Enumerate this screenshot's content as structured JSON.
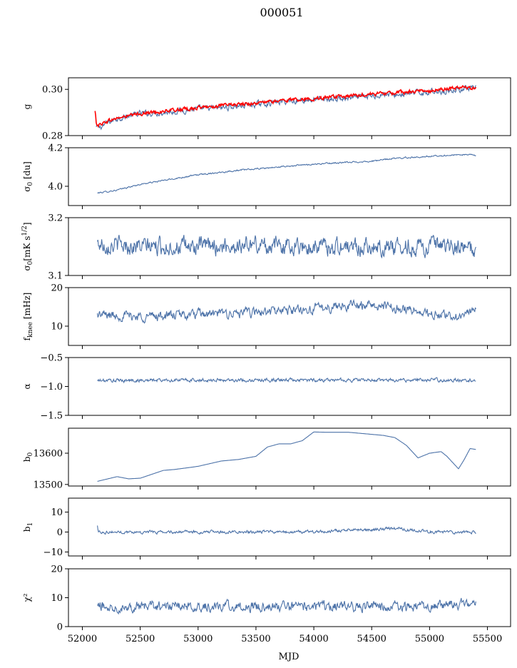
{
  "title": "000051",
  "xlabel": "MJD",
  "x_ticks": [
    "52000",
    "52500",
    "53000",
    "53500",
    "54000",
    "54500",
    "55000",
    "55500"
  ],
  "colors": {
    "series": "#4c72a8",
    "overlay": "#ff0000"
  },
  "chart_data": [
    {
      "type": "line",
      "ylabel": "g",
      "xlim": [
        51880,
        55700
      ],
      "ylim": [
        0.28,
        0.305
      ],
      "y_ticks": [
        "0.28",
        "0.30"
      ],
      "series": [
        {
          "color": "#4c72a8",
          "noise": 0.001,
          "x": [
            52120,
            52150,
            52200,
            52300,
            52500,
            52700,
            53000,
            53200,
            53500,
            53800,
            54000,
            54300,
            54500,
            54600,
            54700,
            55000,
            55200,
            55300,
            55350,
            55400
          ],
          "y": [
            0.2835,
            0.2835,
            0.285,
            0.2875,
            0.2895,
            0.29,
            0.2915,
            0.292,
            0.2935,
            0.295,
            0.2955,
            0.296,
            0.297,
            0.298,
            0.2975,
            0.299,
            0.2995,
            0.3005,
            0.3,
            0.3005
          ]
        },
        {
          "color": "#ff0000",
          "noise": 0.0006,
          "x": [
            52110,
            52120,
            52140,
            52200,
            52300,
            52500,
            52700,
            53000,
            53200,
            53500,
            53800,
            54000,
            54300,
            54500,
            54700,
            55000,
            55200,
            55300,
            55400
          ],
          "y": [
            0.2905,
            0.2855,
            0.2845,
            0.286,
            0.2875,
            0.2895,
            0.2905,
            0.292,
            0.293,
            0.294,
            0.2955,
            0.296,
            0.297,
            0.298,
            0.2985,
            0.2995,
            0.3005,
            0.301,
            0.3005
          ]
        }
      ]
    },
    {
      "type": "line",
      "ylabel": "σ0 [du]",
      "xlim": [
        51880,
        55700
      ],
      "ylim": [
        3.9,
        4.2
      ],
      "y_ticks": [
        "4.0",
        "4.2"
      ],
      "series": [
        {
          "color": "#4c72a8",
          "noise": 0.003,
          "x": [
            52130,
            52300,
            52500,
            52800,
            53000,
            53300,
            53600,
            54000,
            54500,
            54700,
            55000,
            55300,
            55400
          ],
          "y": [
            3.965,
            3.98,
            4.01,
            4.04,
            4.06,
            4.08,
            4.095,
            4.115,
            4.13,
            4.145,
            4.155,
            4.165,
            4.16
          ]
        }
      ]
    },
    {
      "type": "line",
      "ylabel": "σ0[mK s^1/2]",
      "xlim": [
        51880,
        55700
      ],
      "ylim": [
        3.1,
        3.2
      ],
      "y_ticks": [
        "3.1",
        "3.2"
      ],
      "series": [
        {
          "color": "#4c72a8",
          "noise": 0.012,
          "x": [
            52130,
            52500,
            53000,
            53500,
            54000,
            54500,
            55000,
            55400
          ],
          "y": [
            3.155,
            3.15,
            3.15,
            3.153,
            3.15,
            3.15,
            3.15,
            3.145
          ]
        }
      ]
    },
    {
      "type": "line",
      "ylabel": "f_knee [mHz]",
      "xlim": [
        51880,
        55700
      ],
      "ylim": [
        5,
        20
      ],
      "y_ticks": [
        "10",
        "20"
      ],
      "series": [
        {
          "color": "#4c72a8",
          "noise": 1.0,
          "x": [
            52130,
            52500,
            53000,
            53500,
            54000,
            54300,
            54500,
            54800,
            55000,
            55200,
            55400
          ],
          "y": [
            13,
            12.5,
            13,
            13.5,
            14.5,
            15.5,
            15.5,
            14.5,
            13,
            12.5,
            14
          ]
        }
      ]
    },
    {
      "type": "line",
      "ylabel": "α",
      "xlim": [
        51880,
        55700
      ],
      "ylim": [
        -1.5,
        -0.5
      ],
      "y_ticks": [
        "−1.5",
        "−1.0",
        "−0.5"
      ],
      "series": [
        {
          "color": "#4c72a8",
          "noise": 0.025,
          "x": [
            52130,
            52800,
            53500,
            54200,
            54900,
            55400
          ],
          "y": [
            -0.9,
            -0.89,
            -0.89,
            -0.89,
            -0.89,
            -0.89
          ]
        }
      ]
    },
    {
      "type": "line",
      "ylabel": "b0",
      "xlim": [
        51880,
        55700
      ],
      "ylim": [
        13495,
        13680
      ],
      "y_ticks": [
        "13500",
        "13600"
      ],
      "series": [
        {
          "color": "#4c72a8",
          "noise": 0,
          "x": [
            52130,
            52300,
            52400,
            52500,
            52700,
            52800,
            53000,
            53200,
            53350,
            53500,
            53600,
            53700,
            53800,
            53900,
            54000,
            54100,
            54300,
            54600,
            54700,
            54800,
            54900,
            55000,
            55100,
            55150,
            55200,
            55250,
            55300,
            55350,
            55400
          ],
          "y": [
            13510,
            13525,
            13518,
            13520,
            13545,
            13548,
            13558,
            13575,
            13580,
            13590,
            13620,
            13630,
            13630,
            13640,
            13668,
            13667,
            13667,
            13657,
            13650,
            13625,
            13585,
            13600,
            13605,
            13590,
            13570,
            13550,
            13580,
            13615,
            13612
          ]
        }
      ]
    },
    {
      "type": "line",
      "ylabel": "b1",
      "xlim": [
        51880,
        55700
      ],
      "ylim": [
        -12,
        17
      ],
      "y_ticks": [
        "−10",
        "0",
        "10"
      ],
      "series": [
        {
          "color": "#4c72a8",
          "noise": 0.6,
          "x": [
            52130,
            52140,
            52500,
            53000,
            53500,
            54000,
            54300,
            54500,
            54700,
            55000,
            55200,
            55400
          ],
          "y": [
            3,
            0,
            0,
            0,
            0,
            0,
            1,
            1,
            2,
            0,
            0,
            0
          ]
        }
      ]
    },
    {
      "type": "line",
      "ylabel": "χ²",
      "xlim": [
        51880,
        55700
      ],
      "ylim": [
        0,
        20
      ],
      "y_ticks": [
        "0",
        "10",
        "20"
      ],
      "series": [
        {
          "color": "#4c72a8",
          "noise": 1.4,
          "x": [
            52130,
            52500,
            53000,
            53500,
            54000,
            54500,
            55000,
            55300,
            55400
          ],
          "y": [
            7,
            7,
            7,
            7,
            7,
            7,
            7,
            8,
            8
          ]
        }
      ]
    }
  ]
}
